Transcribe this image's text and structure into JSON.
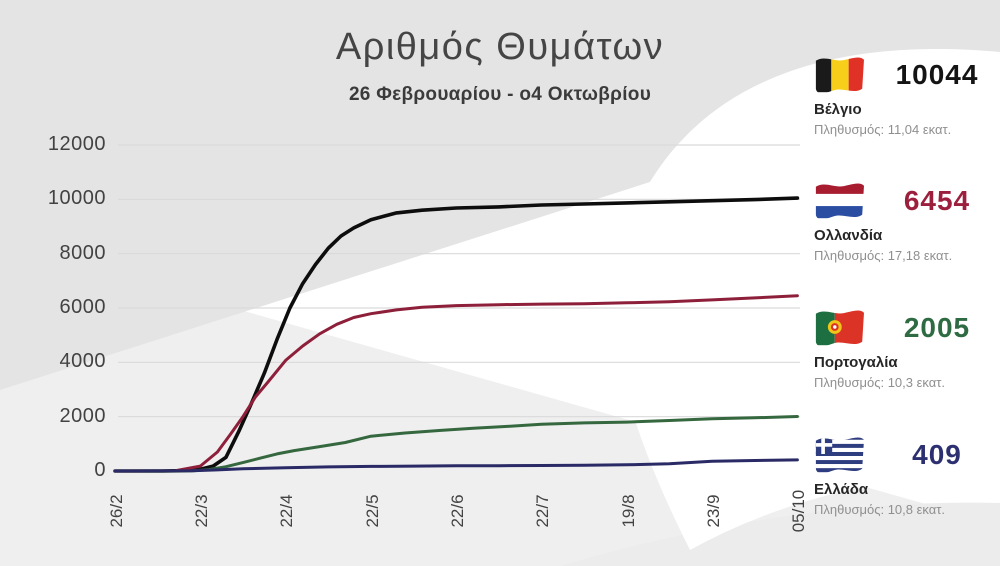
{
  "header": {
    "title": "Αριθμός Θυμάτων",
    "subtitle": "26 Φεβρουαρίου - ο4 Οκτωβρίου"
  },
  "colors": {
    "background_top_gray": "#e4e4e4",
    "background_bottom_gray": "#efefef",
    "gridline": "#d9d9d9",
    "axis_text": "#424242"
  },
  "chart_data": {
    "type": "line",
    "title": "Αριθμός Θυμάτων",
    "subtitle": "26 Φεβρουαρίου - ο4 Οκτωβρίου",
    "xlabel": "",
    "ylabel": "",
    "ylim": [
      0,
      12000
    ],
    "grid": true,
    "legend_position": "right",
    "x_tick_labels": [
      "26/2",
      "22/3",
      "22/4",
      "22/5",
      "22/6",
      "22/7",
      "19/8",
      "23/9",
      "05/10"
    ],
    "y_ticks": [
      0,
      2000,
      4000,
      6000,
      8000,
      10000,
      12000
    ],
    "series": [
      {
        "key": "belgium",
        "name": "Βέλγιο",
        "color": "#0d0d0d",
        "width": 3.6,
        "final": 10044,
        "points": [
          [
            0,
            0
          ],
          [
            0.55,
            1
          ],
          [
            0.8,
            10
          ],
          [
            1.0,
            67
          ],
          [
            1.15,
            180
          ],
          [
            1.3,
            500
          ],
          [
            1.45,
            1450
          ],
          [
            1.6,
            2500
          ],
          [
            1.75,
            3600
          ],
          [
            1.9,
            4850
          ],
          [
            2.05,
            6000
          ],
          [
            2.2,
            6900
          ],
          [
            2.35,
            7600
          ],
          [
            2.5,
            8200
          ],
          [
            2.65,
            8650
          ],
          [
            2.8,
            8950
          ],
          [
            3.0,
            9250
          ],
          [
            3.3,
            9500
          ],
          [
            3.6,
            9600
          ],
          [
            4.0,
            9680
          ],
          [
            4.5,
            9720
          ],
          [
            5.0,
            9790
          ],
          [
            5.5,
            9830
          ],
          [
            6.0,
            9870
          ],
          [
            6.5,
            9910
          ],
          [
            7.0,
            9950
          ],
          [
            7.5,
            9990
          ],
          [
            8.0,
            10044
          ]
        ]
      },
      {
        "key": "netherlands",
        "name": "Ολλανδία",
        "color": "#8e1f3a",
        "width": 3,
        "final": 6454,
        "points": [
          [
            0,
            0
          ],
          [
            0.7,
            2
          ],
          [
            1.0,
            180
          ],
          [
            1.2,
            700
          ],
          [
            1.35,
            1340
          ],
          [
            1.5,
            2000
          ],
          [
            1.65,
            2740
          ],
          [
            1.8,
            3300
          ],
          [
            2.0,
            4070
          ],
          [
            2.2,
            4600
          ],
          [
            2.4,
            5050
          ],
          [
            2.6,
            5400
          ],
          [
            2.8,
            5650
          ],
          [
            3.0,
            5790
          ],
          [
            3.3,
            5930
          ],
          [
            3.6,
            6030
          ],
          [
            4.0,
            6090
          ],
          [
            4.5,
            6120
          ],
          [
            5.0,
            6145
          ],
          [
            5.5,
            6160
          ],
          [
            6.0,
            6190
          ],
          [
            6.5,
            6230
          ],
          [
            7.0,
            6300
          ],
          [
            7.5,
            6370
          ],
          [
            8.0,
            6454
          ]
        ]
      },
      {
        "key": "portugal",
        "name": "Πορτογαλία",
        "color": "#35683f",
        "width": 3,
        "final": 2005,
        "points": [
          [
            0,
            0
          ],
          [
            0.9,
            5
          ],
          [
            1.1,
            50
          ],
          [
            1.3,
            160
          ],
          [
            1.5,
            310
          ],
          [
            1.7,
            470
          ],
          [
            1.9,
            630
          ],
          [
            2.1,
            750
          ],
          [
            2.4,
            900
          ],
          [
            2.7,
            1050
          ],
          [
            3.0,
            1280
          ],
          [
            3.4,
            1400
          ],
          [
            3.8,
            1490
          ],
          [
            4.2,
            1570
          ],
          [
            4.6,
            1640
          ],
          [
            5.0,
            1720
          ],
          [
            5.5,
            1770
          ],
          [
            6.0,
            1800
          ],
          [
            6.5,
            1860
          ],
          [
            7.0,
            1920
          ],
          [
            7.5,
            1960
          ],
          [
            8.0,
            2005
          ]
        ]
      },
      {
        "key": "greece",
        "name": "Ελλάδα",
        "color": "#2a2a66",
        "width": 3,
        "final": 409,
        "points": [
          [
            0,
            0
          ],
          [
            0.9,
            10
          ],
          [
            1.2,
            40
          ],
          [
            1.5,
            80
          ],
          [
            2.0,
            121
          ],
          [
            2.5,
            150
          ],
          [
            3.0,
            169
          ],
          [
            3.5,
            180
          ],
          [
            4.0,
            190
          ],
          [
            4.5,
            196
          ],
          [
            5.0,
            201
          ],
          [
            5.5,
            210
          ],
          [
            6.0,
            228
          ],
          [
            6.5,
            265
          ],
          [
            7.0,
            357
          ],
          [
            7.5,
            385
          ],
          [
            8.0,
            409
          ]
        ]
      }
    ]
  },
  "legend": [
    {
      "flag_icon": "belgium-flag",
      "value": "10044",
      "value_color": "#141414",
      "country": "Βέλγιο",
      "population": "Πληθυσμός: 11,04 εκατ."
    },
    {
      "flag_icon": "netherlands-flag",
      "value": "6454",
      "value_color": "#9c1f3e",
      "country": "Ολλανδία",
      "population": "Πληθυσμός: 17,18 εκατ."
    },
    {
      "flag_icon": "portugal-flag",
      "value": "2005",
      "value_color": "#2f6b42",
      "country": "Πορτογαλία",
      "population": "Πληθυσμός: 10,3 εκατ."
    },
    {
      "flag_icon": "greece-flag",
      "value": "409",
      "value_color": "#2d3070",
      "country": "Ελλάδα",
      "population": "Πληθυσμός: 10,8 εκατ."
    }
  ]
}
